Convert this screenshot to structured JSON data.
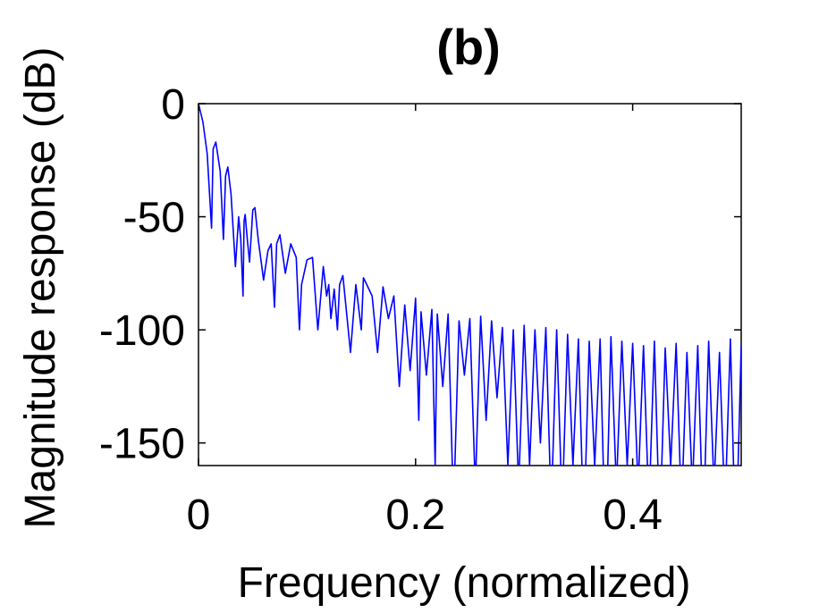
{
  "chart_data": {
    "type": "line",
    "title": "(b)",
    "xlabel": "Frequency (normalized)",
    "ylabel": "Magnitude response (dB)",
    "xlim": [
      0,
      0.5
    ],
    "ylim": [
      -160,
      0
    ],
    "x_ticks": [
      0,
      0.2,
      0.4
    ],
    "x_tick_labels": [
      "0",
      "0.2",
      "0.4"
    ],
    "y_ticks": [
      0,
      -50,
      -100,
      -150
    ],
    "y_tick_labels": [
      "0",
      "-50",
      "-100",
      "-150"
    ],
    "grid": false,
    "line_color": "#0000ff",
    "series": [
      {
        "x": [
          0,
          0.004,
          0.008,
          0.012,
          0.0135,
          0.016,
          0.02,
          0.023,
          0.025,
          0.027,
          0.03,
          0.034,
          0.037,
          0.039,
          0.041,
          0.042,
          0.043,
          0.045,
          0.047,
          0.049,
          0.05,
          0.052,
          0.055,
          0.06,
          0.064,
          0.067,
          0.07,
          0.072,
          0.075,
          0.08,
          0.085,
          0.09,
          0.093,
          0.095,
          0.1,
          0.105,
          0.11,
          0.115,
          0.118,
          0.12,
          0.122,
          0.125,
          0.128,
          0.13,
          0.133,
          0.14,
          0.145,
          0.15,
          0.152,
          0.155,
          0.16,
          0.165,
          0.17,
          0.175,
          0.18,
          0.185,
          0.19,
          0.195,
          0.2,
          0.203,
          0.205,
          0.21,
          0.215,
          0.218,
          0.22,
          0.225,
          0.23,
          0.235,
          0.24,
          0.245,
          0.25,
          0.255,
          0.26,
          0.265,
          0.27,
          0.275,
          0.28,
          0.285,
          0.29,
          0.295,
          0.3,
          0.305,
          0.31,
          0.315,
          0.32,
          0.325,
          0.33,
          0.335,
          0.34,
          0.345,
          0.35,
          0.355,
          0.36,
          0.365,
          0.37,
          0.375,
          0.38,
          0.385,
          0.39,
          0.395,
          0.4,
          0.405,
          0.41,
          0.415,
          0.42,
          0.425,
          0.43,
          0.435,
          0.44,
          0.445,
          0.45,
          0.455,
          0.46,
          0.465,
          0.47,
          0.475,
          0.48,
          0.485,
          0.49,
          0.495,
          0.5
        ],
        "y": [
          0,
          -8,
          -22,
          -55,
          -20,
          -17,
          -30,
          -60,
          -32,
          -28,
          -40,
          -72,
          -50,
          -60,
          -85,
          -52,
          -49,
          -60,
          -70,
          -55,
          -47,
          -46,
          -60,
          -78,
          -65,
          -62,
          -90,
          -62,
          -58,
          -75,
          -62,
          -68,
          -100,
          -80,
          -69,
          -68,
          -100,
          -72,
          -85,
          -80,
          -95,
          -82,
          -100,
          -80,
          -76,
          -110,
          -80,
          -100,
          -77,
          -80,
          -85,
          -110,
          -81,
          -95,
          -85,
          -125,
          -89,
          -118,
          -86,
          -140,
          -92,
          -120,
          -91,
          -160,
          -93,
          -125,
          -93,
          -180,
          -96,
          -120,
          -95,
          -170,
          -94,
          -140,
          -96,
          -130,
          -99,
          -160,
          -100,
          -170,
          -98,
          -160,
          -100,
          -150,
          -99,
          -180,
          -100,
          -180,
          -102,
          -160,
          -104,
          -190,
          -105,
          -160,
          -104,
          -200,
          -103,
          -170,
          -105,
          -160,
          -106,
          -170,
          -107,
          -180,
          -105,
          -190,
          -108,
          -160,
          -106,
          -180,
          -110,
          -170,
          -107,
          -190,
          -105,
          -170,
          -110,
          -180,
          -104,
          -200,
          -107
        ]
      }
    ]
  }
}
